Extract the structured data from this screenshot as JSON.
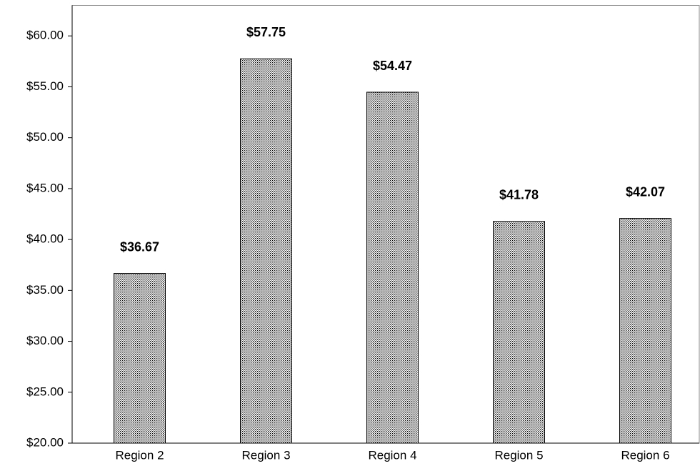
{
  "chart_data": {
    "type": "bar",
    "categories": [
      "Region 2",
      "Region 3",
      "Region 4",
      "Region 5",
      "Region 6"
    ],
    "values": [
      36.67,
      57.75,
      54.47,
      41.78,
      42.07
    ],
    "value_labels": [
      "$36.67",
      "$57.75",
      "$54.47",
      "$41.78",
      "$42.07"
    ],
    "color": "#000000",
    "ylim": [
      20,
      63
    ],
    "yticks": [
      {
        "value": 20,
        "label": "$20.00"
      },
      {
        "value": 25,
        "label": "$25.00"
      },
      {
        "value": 30,
        "label": "$30.00"
      },
      {
        "value": 35,
        "label": "$35.00"
      },
      {
        "value": 40,
        "label": "$40.00"
      },
      {
        "value": 45,
        "label": "$45.00"
      },
      {
        "value": 50,
        "label": "$50.00"
      },
      {
        "value": 55,
        "label": "$55.00"
      },
      {
        "value": 60,
        "label": "$60.00"
      }
    ],
    "grid": false
  }
}
